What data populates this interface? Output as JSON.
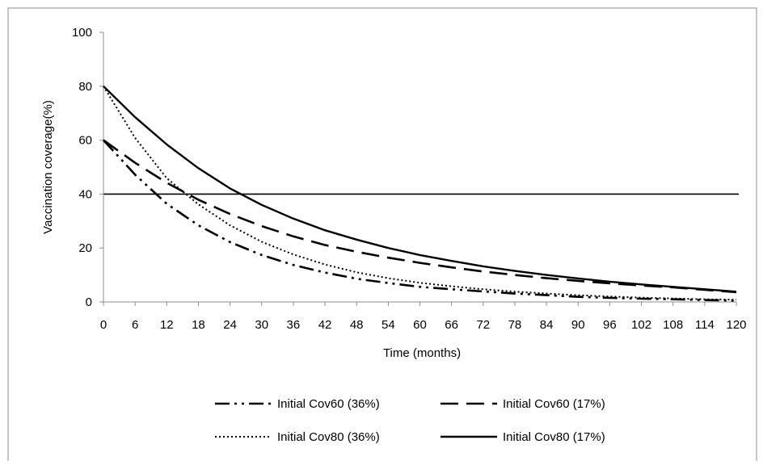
{
  "chart_data": {
    "type": "line",
    "title": "",
    "xlabel": "Time (months)",
    "ylabel": "Vaccination coverage(%)",
    "xlim": [
      0,
      120
    ],
    "ylim": [
      0,
      100
    ],
    "x_ticks": [
      0,
      6,
      12,
      18,
      24,
      30,
      36,
      42,
      48,
      54,
      60,
      66,
      72,
      78,
      84,
      90,
      96,
      102,
      108,
      114,
      120
    ],
    "y_ticks": [
      0,
      20,
      40,
      60,
      80,
      100
    ],
    "grid": false,
    "legend_position": "bottom",
    "reference_line": {
      "y": 40
    },
    "x": [
      0,
      6,
      12,
      18,
      24,
      30,
      36,
      42,
      48,
      54,
      60,
      66,
      72,
      78,
      84,
      90,
      96,
      102,
      108,
      114,
      120
    ],
    "series": [
      {
        "name": "Initial Cov60 (36%)",
        "style": "dash-dot-dot",
        "values": [
          60,
          47.2,
          36.4,
          28.4,
          22.2,
          17.4,
          13.7,
          10.9,
          8.6,
          7.0,
          5.6,
          4.7,
          3.9,
          3.1,
          2.5,
          1.9,
          1.5,
          1.2,
          1.0,
          0.7,
          0.5
        ]
      },
      {
        "name": "Initial Cov60 (17%)",
        "style": "long-dash",
        "values": [
          60,
          51.6,
          44.2,
          37.9,
          32.6,
          28.1,
          24.3,
          21.1,
          18.6,
          16.4,
          14.5,
          12.8,
          11.3,
          10.0,
          8.8,
          7.8,
          6.9,
          6.1,
          5.4,
          4.5,
          3.6
        ]
      },
      {
        "name": "Initial Cov80 (36%)",
        "style": "dotted",
        "values": [
          80,
          60.8,
          45.9,
          36.2,
          28.4,
          22.3,
          17.6,
          13.9,
          11.0,
          8.8,
          7.1,
          5.8,
          4.7,
          3.8,
          3.1,
          2.5,
          2.0,
          1.6,
          1.3,
          1.0,
          0.8
        ]
      },
      {
        "name": "Initial Cov80 (17%)",
        "style": "solid",
        "values": [
          80,
          68.5,
          58.4,
          49.6,
          42.1,
          36.0,
          30.9,
          26.6,
          23.1,
          20.0,
          17.4,
          15.2,
          13.2,
          11.5,
          10.0,
          8.7,
          7.5,
          6.5,
          5.6,
          4.7,
          3.8
        ]
      }
    ]
  }
}
